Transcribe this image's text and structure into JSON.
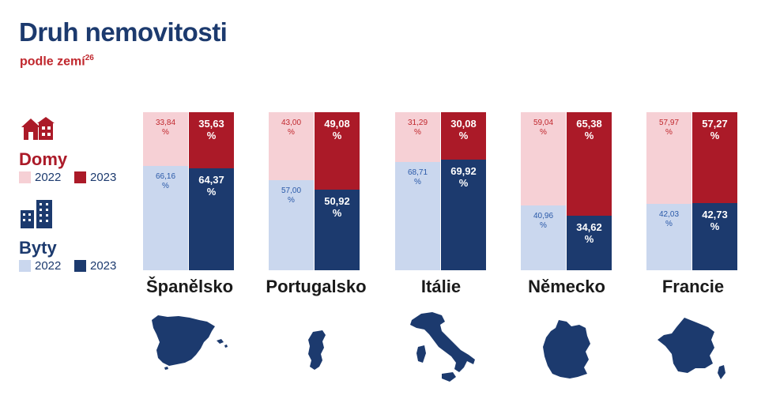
{
  "header": {
    "title": "Druh nemovitosti",
    "subtitle": "podle zemí",
    "subtitle_sup": "26"
  },
  "legend": {
    "houses_label": "Domy",
    "flats_label": "Byty",
    "year_old": "2022",
    "year_new": "2023",
    "houses_icon": "house-icon",
    "flats_icon": "apartment-building-icon"
  },
  "colors": {
    "houses_2022": "#f6d0d5",
    "houses_2023": "#ab1a28",
    "flats_2022": "#cad7ee",
    "flats_2023": "#1c3a6e",
    "houses_text_2022": "#c0272d",
    "flats_text_2022": "#2a59a8"
  },
  "chart_data": {
    "type": "bar",
    "stacked": true,
    "unit": "%",
    "categories": [
      "Španělsko",
      "Portugalsko",
      "Itálie",
      "Německo",
      "Francie"
    ],
    "series": [
      {
        "name": "Domy 2022",
        "values": [
          33.84,
          43.0,
          31.29,
          59.04,
          57.97
        ]
      },
      {
        "name": "Byty 2022",
        "values": [
          66.16,
          57.0,
          68.71,
          40.96,
          42.03
        ]
      },
      {
        "name": "Domy 2023",
        "values": [
          35.63,
          49.08,
          30.08,
          65.38,
          57.27
        ]
      },
      {
        "name": "Byty 2023",
        "values": [
          64.37,
          50.92,
          69.92,
          34.62,
          42.73
        ]
      }
    ],
    "labels": {
      "houses_2022": [
        "33,84",
        "43,00",
        "31,29",
        "59,04",
        "57,97"
      ],
      "flats_2022": [
        "66,16",
        "57,00",
        "68,71",
        "40,96",
        "42,03"
      ],
      "houses_2023": [
        "35,63",
        "49,08",
        "30,08",
        "65,38",
        "57,27"
      ],
      "flats_2023": [
        "64,37",
        "50,92",
        "69,92",
        "34,62",
        "42,73"
      ]
    },
    "percent_sign": "%",
    "maps": [
      "spain-map-icon",
      "portugal-map-icon",
      "italy-map-icon",
      "germany-map-icon",
      "france-map-icon"
    ]
  }
}
